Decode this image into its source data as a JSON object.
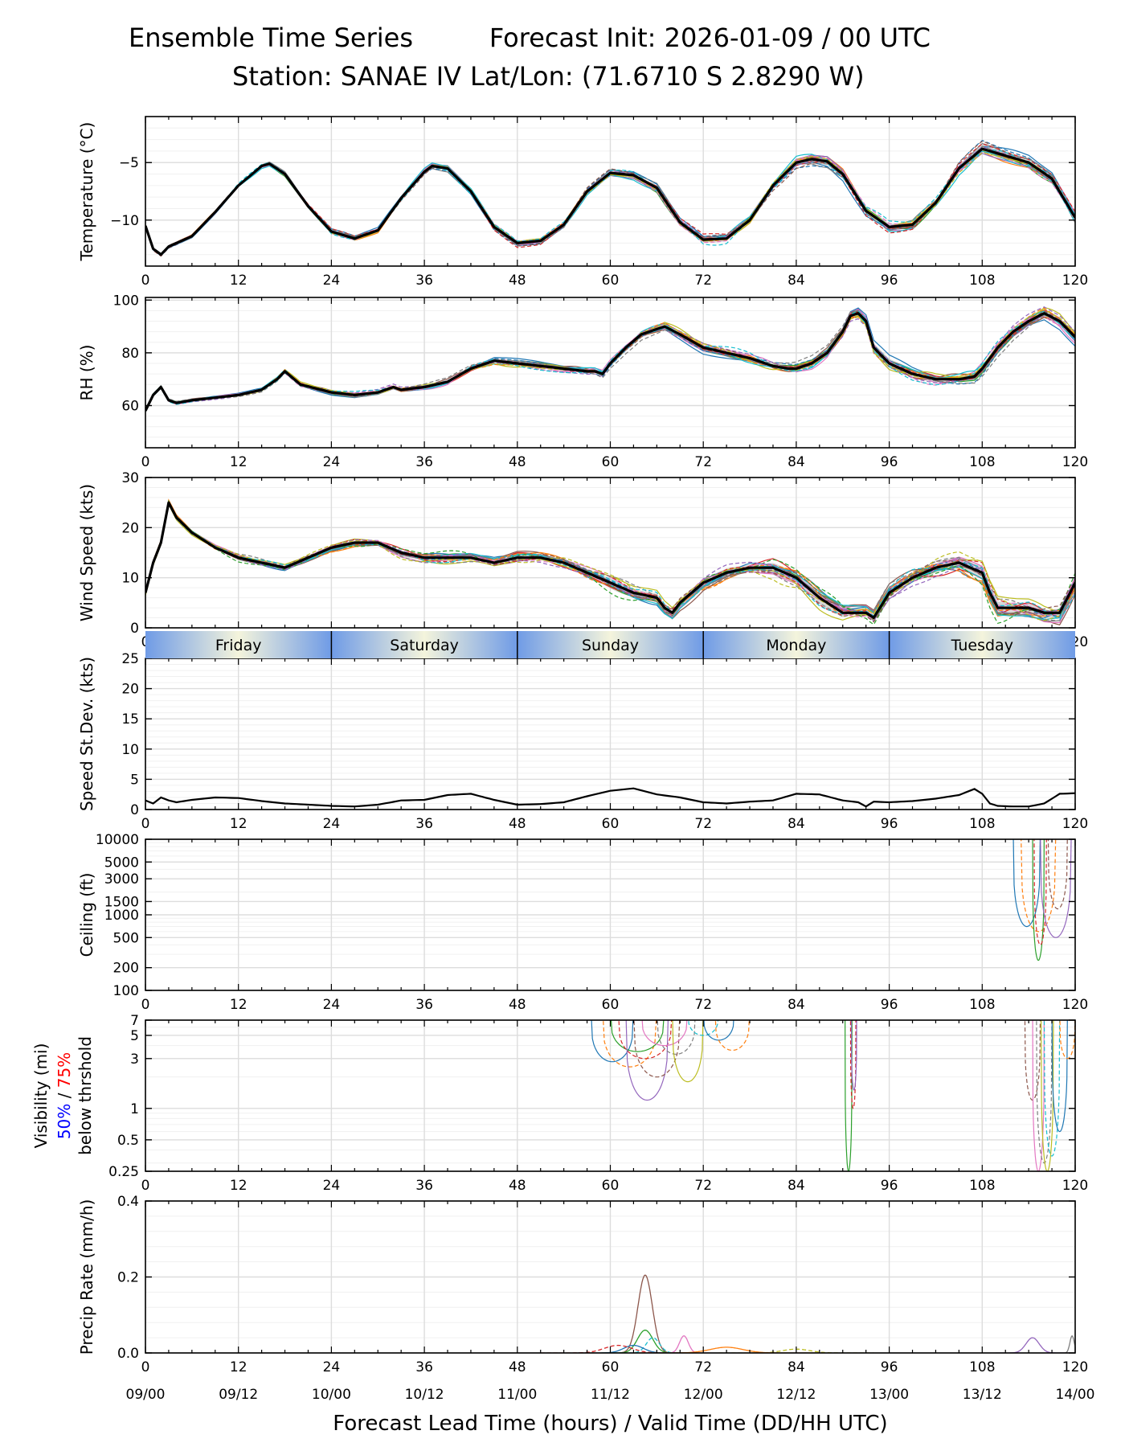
{
  "header": {
    "title_left": "Ensemble Time Series",
    "title_right": "Forecast Init: 2026-01-09 / 00 UTC",
    "station": "Station: SANAE IV",
    "latlon": "Lat/Lon: (71.6710 S 2.8290 W)"
  },
  "x_axis": {
    "label": "Forecast Lead Time (hours) / Valid Time (DD/HH UTC)",
    "range": [
      0,
      120
    ],
    "lead_ticks": [
      "0",
      "12",
      "24",
      "36",
      "48",
      "60",
      "72",
      "84",
      "96",
      "108",
      "120"
    ],
    "valid_ticks": [
      "09/00",
      "09/12",
      "10/00",
      "10/12",
      "11/00",
      "11/12",
      "12/00",
      "12/12",
      "13/00",
      "13/12",
      "14/00"
    ]
  },
  "day_band": {
    "days": [
      "Friday",
      "Saturday",
      "Sunday",
      "Monday",
      "Tuesday"
    ],
    "colors": [
      "#6f9be6",
      "#f4f4dc"
    ]
  },
  "colors": {
    "mean": "#000000",
    "spread": "#bdbdbd",
    "grid": "#dddddd",
    "members": [
      "#1f77b4",
      "#ff7f0e",
      "#2ca02c",
      "#d62728",
      "#9467bd",
      "#8c564b",
      "#e377c2",
      "#7f7f7f",
      "#bcbd22",
      "#17becf"
    ],
    "label_50": "#0000ff",
    "label_75": "#ff0000"
  },
  "chart_data": [
    {
      "id": "temperature",
      "type": "line",
      "ylabel": "Temperature (°C)",
      "ylim": [
        -14,
        -1
      ],
      "yticks": [
        -10,
        -5
      ],
      "ytick_labels": [
        "−10",
        "−5"
      ],
      "ensemble_spread_typical": 0.6,
      "mean": {
        "x": [
          0,
          1,
          2,
          3,
          6,
          9,
          12,
          15,
          16,
          18,
          21,
          24,
          27,
          30,
          33,
          36,
          37,
          39,
          42,
          45,
          48,
          51,
          54,
          57,
          60,
          63,
          66,
          69,
          72,
          75,
          78,
          81,
          84,
          86,
          88,
          90,
          93,
          96,
          99,
          102,
          105,
          108,
          111,
          114,
          117,
          120
        ],
        "y": [
          -10.5,
          -12.5,
          -13.0,
          -12.3,
          -11.4,
          -9.3,
          -7.0,
          -5.3,
          -5.1,
          -6.0,
          -8.8,
          -11.0,
          -11.6,
          -10.9,
          -8.1,
          -5.8,
          -5.3,
          -5.5,
          -7.5,
          -10.6,
          -12.0,
          -11.8,
          -10.4,
          -7.5,
          -5.9,
          -6.1,
          -7.2,
          -10.2,
          -11.7,
          -11.6,
          -10.0,
          -7.0,
          -5.0,
          -4.7,
          -4.9,
          -6.0,
          -9.2,
          -10.6,
          -10.4,
          -8.5,
          -5.5,
          -3.8,
          -4.4,
          -5.0,
          -6.4,
          -9.8
        ]
      }
    },
    {
      "id": "rh",
      "type": "line",
      "ylabel": "RH (%)",
      "ylim": [
        44,
        101
      ],
      "yticks": [
        60,
        80,
        100
      ],
      "ytick_labels": [
        "60",
        "80",
        "100"
      ],
      "ensemble_spread_typical": 3,
      "mean": {
        "x": [
          0,
          1,
          2,
          3,
          4,
          6,
          9,
          12,
          15,
          17,
          18,
          20,
          24,
          27,
          30,
          32,
          33,
          36,
          39,
          42,
          45,
          48,
          51,
          54,
          57,
          58,
          59,
          60,
          62,
          64,
          66,
          67,
          69,
          72,
          75,
          78,
          81,
          83,
          84,
          86,
          88,
          90,
          91,
          92,
          93,
          94,
          96,
          99,
          102,
          105,
          107,
          108,
          110,
          112,
          114,
          116,
          118,
          120
        ],
        "y": [
          58,
          64,
          67,
          62,
          61,
          62,
          63,
          64,
          66,
          70,
          73,
          68,
          65,
          64,
          65,
          67,
          66,
          67,
          69,
          74,
          77,
          76,
          75,
          74,
          73,
          73,
          72,
          76,
          82,
          87,
          89,
          90,
          87,
          82,
          80,
          78,
          75,
          74,
          74,
          76,
          80,
          88,
          94,
          95,
          92,
          82,
          76,
          72,
          70,
          70,
          71,
          74,
          82,
          88,
          92,
          95,
          92,
          86
        ]
      }
    },
    {
      "id": "wind_speed",
      "type": "line",
      "ylabel": "Wind Speed (kts)",
      "ylim": [
        0,
        30
      ],
      "yticks": [
        0,
        10,
        20,
        30
      ],
      "ytick_labels": [
        "0",
        "10",
        "20",
        "30"
      ],
      "ensemble_spread_typical": 2,
      "mean": {
        "x": [
          0,
          1,
          2,
          3,
          4,
          6,
          9,
          12,
          15,
          18,
          21,
          24,
          27,
          30,
          33,
          36,
          39,
          42,
          45,
          48,
          51,
          54,
          57,
          60,
          63,
          66,
          67,
          68,
          69,
          72,
          75,
          78,
          81,
          84,
          87,
          90,
          92,
          93,
          94,
          96,
          99,
          102,
          105,
          108,
          109,
          110,
          112,
          114,
          116,
          118,
          120
        ],
        "y": [
          7,
          13,
          17,
          25,
          22,
          19,
          16,
          14,
          13,
          12,
          14,
          16,
          17,
          17,
          15,
          14,
          14,
          14,
          13,
          14,
          14,
          13,
          11,
          9,
          7,
          6,
          4,
          3,
          5,
          9,
          11,
          12,
          12,
          10,
          6,
          3,
          3,
          3,
          2,
          7,
          10,
          12,
          13,
          11,
          7,
          4,
          4,
          4,
          3,
          3,
          9
        ]
      }
    },
    {
      "id": "speed_stdev",
      "type": "line",
      "ylabel": "Speed St.Dev. (kts)",
      "ylim": [
        0,
        25
      ],
      "yticks": [
        0,
        5,
        10,
        15,
        20,
        25
      ],
      "ytick_labels": [
        "0",
        "5",
        "10",
        "15",
        "20",
        "25"
      ],
      "series": {
        "x": [
          0,
          1,
          2,
          3,
          4,
          6,
          9,
          12,
          15,
          18,
          21,
          24,
          27,
          30,
          33,
          36,
          39,
          42,
          45,
          48,
          51,
          54,
          57,
          60,
          63,
          66,
          69,
          72,
          75,
          78,
          81,
          84,
          87,
          90,
          92,
          93,
          94,
          96,
          99,
          102,
          105,
          106,
          107,
          108,
          109,
          110,
          112,
          114,
          116,
          118,
          120
        ],
        "y": [
          1.5,
          1.0,
          2.0,
          1.5,
          1.2,
          1.6,
          2.0,
          1.9,
          1.4,
          1.0,
          0.8,
          0.6,
          0.5,
          0.8,
          1.5,
          1.6,
          2.4,
          2.6,
          1.6,
          0.8,
          0.9,
          1.2,
          2.2,
          3.1,
          3.5,
          2.5,
          2.0,
          1.2,
          1.0,
          1.3,
          1.5,
          2.6,
          2.5,
          1.5,
          1.2,
          0.5,
          1.3,
          1.2,
          1.4,
          1.8,
          2.4,
          2.9,
          3.4,
          2.6,
          1.0,
          0.6,
          0.5,
          0.5,
          1.0,
          2.6,
          2.7
        ]
      }
    },
    {
      "id": "ceiling",
      "type": "line",
      "ylabel": "Ceiling (ft)",
      "yscale": "log",
      "ylim": [
        100,
        10000
      ],
      "yticks": [
        100,
        200,
        500,
        1000,
        1500,
        3000,
        5000,
        10000
      ],
      "ytick_labels": [
        "100",
        "200",
        "500",
        "1000",
        "1500",
        "3000",
        "5000",
        "10000"
      ],
      "member_drops": [
        {
          "x0": 112,
          "x1": 115.5,
          "min": 700
        },
        {
          "x0": 113,
          "x1": 117.5,
          "min": 600
        },
        {
          "x0": 114.5,
          "x1": 116,
          "min": 250
        },
        {
          "x0": 114.7,
          "x1": 116.3,
          "min": 400
        },
        {
          "x0": 115.5,
          "x1": 119.5,
          "min": 500
        },
        {
          "x0": 116.5,
          "x1": 119,
          "min": 1200
        }
      ]
    },
    {
      "id": "visibility",
      "type": "line",
      "ylabel": "Visibility (mi)",
      "ylabel2_a": "50%",
      "ylabel2_sep": " / ",
      "ylabel2_b": "75%",
      "ylabel3": "below thrshold",
      "yscale": "log",
      "ylim": [
        0.25,
        7
      ],
      "yticks": [
        0.25,
        0.5,
        1,
        3,
        5,
        7
      ],
      "ytick_labels": [
        "0.25",
        "0.5",
        "1",
        "3",
        "5",
        "7"
      ],
      "member_drops": [
        {
          "x0": 57.5,
          "x1": 63,
          "min": 2.8
        },
        {
          "x0": 59,
          "x1": 66,
          "min": 2.5
        },
        {
          "x0": 60,
          "x1": 67,
          "min": 3.5
        },
        {
          "x0": 61,
          "x1": 68,
          "min": 3.0
        },
        {
          "x0": 62,
          "x1": 67.5,
          "min": 1.2
        },
        {
          "x0": 63,
          "x1": 69,
          "min": 2.0
        },
        {
          "x0": 64,
          "x1": 70,
          "min": 4.0
        },
        {
          "x0": 66,
          "x1": 71,
          "min": 3.3
        },
        {
          "x0": 68,
          "x1": 72,
          "min": 1.8
        },
        {
          "x0": 70,
          "x1": 74,
          "min": 5.0
        },
        {
          "x0": 72,
          "x1": 76,
          "min": 4.5
        },
        {
          "x0": 73.5,
          "x1": 78,
          "min": 3.6
        },
        {
          "x0": 90.3,
          "x1": 91.2,
          "min": 0.25
        },
        {
          "x0": 91.0,
          "x1": 91.7,
          "min": 1.0
        },
        {
          "x0": 91.1,
          "x1": 91.8,
          "min": 1.5
        },
        {
          "x0": 113.5,
          "x1": 115.5,
          "min": 1.2
        },
        {
          "x0": 114.5,
          "x1": 116,
          "min": 0.25
        },
        {
          "x0": 115,
          "x1": 117,
          "min": 0.3
        },
        {
          "x0": 115.6,
          "x1": 117.2,
          "min": 0.25
        },
        {
          "x0": 116,
          "x1": 118,
          "min": 0.35
        },
        {
          "x0": 117,
          "x1": 119,
          "min": 0.6
        },
        {
          "x0": 118,
          "x1": 120,
          "min": 3.0
        }
      ]
    },
    {
      "id": "precip_rate",
      "type": "line",
      "ylabel": "Precip Rate (mm/h)",
      "ylim": [
        0,
        0.4
      ],
      "yticks": [
        0.0,
        0.2,
        0.4
      ],
      "ytick_labels": [
        "0.0",
        "0.2",
        "0.4"
      ],
      "peaks": [
        {
          "member": 5,
          "x": 64.5,
          "y": 0.205,
          "width": 1.3
        },
        {
          "member": 2,
          "x": 64.5,
          "y": 0.06,
          "width": 1.4
        },
        {
          "member": 9,
          "x": 65.5,
          "y": 0.04,
          "width": 1.2
        },
        {
          "member": 6,
          "x": 69.5,
          "y": 0.045,
          "width": 0.8
        },
        {
          "member": 0,
          "x": 63.0,
          "y": 0.02,
          "width": 1.8
        },
        {
          "member": 3,
          "x": 61.0,
          "y": 0.02,
          "width": 2.5
        },
        {
          "member": 4,
          "x": 114.5,
          "y": 0.04,
          "width": 1.2
        },
        {
          "member": 7,
          "x": 119.6,
          "y": 0.045,
          "width": 0.4
        },
        {
          "member": 8,
          "x": 84.0,
          "y": 0.01,
          "width": 2.5
        },
        {
          "member": 1,
          "x": 75.0,
          "y": 0.015,
          "width": 3.0
        }
      ]
    }
  ]
}
